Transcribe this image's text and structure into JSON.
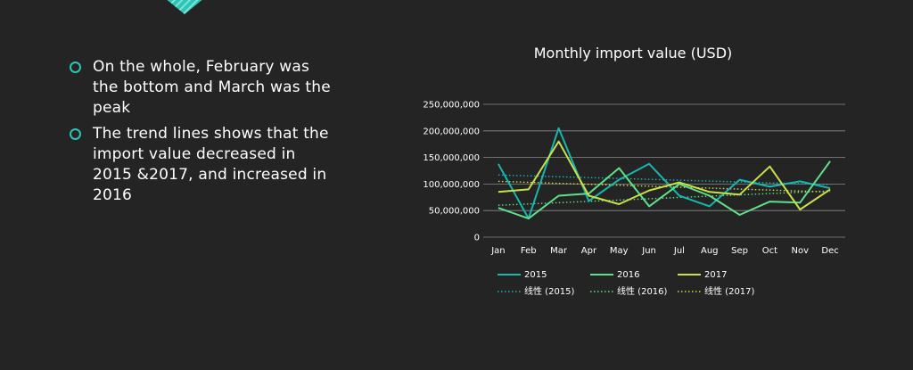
{
  "bullets": [
    {
      "text": "On the whole, February was the bottom and March was the peak"
    },
    {
      "text": "The trend lines shows that the import value decreased in 2015 &2017, and increased in 2016"
    }
  ],
  "colors": {
    "background": "#242424",
    "accent": "#2ec4b6"
  },
  "chart_data": {
    "type": "line",
    "title": "Monthly import value (USD)",
    "xlabel": "",
    "ylabel": "",
    "categories": [
      "Jan",
      "Feb",
      "Mar",
      "Apr",
      "May",
      "Jun",
      "Jul",
      "Aug",
      "Sep",
      "Oct",
      "Nov",
      "Dec"
    ],
    "ylim": [
      0,
      250000000
    ],
    "yticks": [
      0,
      50000000,
      100000000,
      150000000,
      200000000,
      250000000
    ],
    "ytick_labels": [
      "0",
      "50,000,000",
      "100,000,000",
      "150,000,000",
      "200,000,000",
      "250,000,000"
    ],
    "grid": true,
    "legend_position": "bottom",
    "series": [
      {
        "name": "2015",
        "color": "#17b6b0",
        "values": [
          138000000,
          35000000,
          205000000,
          68000000,
          108000000,
          138000000,
          78000000,
          58000000,
          108000000,
          95000000,
          105000000,
          92000000
        ]
      },
      {
        "name": "2016",
        "color": "#5fe08a",
        "values": [
          55000000,
          35000000,
          78000000,
          82000000,
          130000000,
          58000000,
          100000000,
          78000000,
          42000000,
          67000000,
          65000000,
          143000000
        ]
      },
      {
        "name": "2017",
        "color": "#c9e04a",
        "values": [
          85000000,
          90000000,
          180000000,
          78000000,
          62000000,
          88000000,
          103000000,
          85000000,
          80000000,
          133000000,
          52000000,
          90000000
        ]
      }
    ],
    "trendlines": [
      {
        "name": "线性 (2015)",
        "color": "#17b6b0",
        "values": [
          117000000,
          99000000
        ]
      },
      {
        "name": "线性 (2016)",
        "color": "#5fe08a",
        "values": [
          60000000,
          87000000
        ]
      },
      {
        "name": "线性 (2017)",
        "color": "#c9e04a",
        "values": [
          105000000,
          85000000
        ]
      }
    ]
  }
}
